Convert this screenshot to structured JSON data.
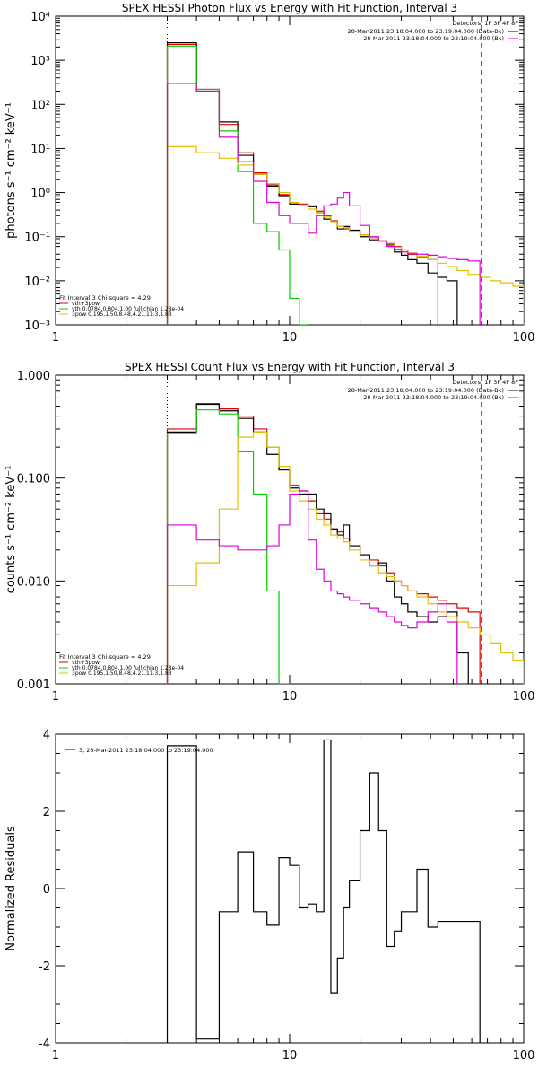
{
  "chart_data": [
    {
      "type": "line",
      "step": true,
      "title": "SPEX HESSI Photon Flux vs Energy with Fit Function, Interval 3",
      "xlabel": "",
      "ylabel": "photons s⁻¹ cm⁻² keV⁻¹",
      "x_scale": "log",
      "y_scale": "log",
      "xlim": [
        1,
        100
      ],
      "ylim": [
        0.001,
        10000
      ],
      "x_ticks": [
        1,
        10,
        100
      ],
      "x_tick_labels": [
        "1",
        "10",
        "100"
      ],
      "y_ticks": [
        0.001,
        0.01,
        0.1,
        1,
        10,
        100,
        1000,
        10000
      ],
      "y_tick_labels": [
        "10⁻³",
        "10⁻²",
        "10⁻¹",
        "10⁰",
        "10¹",
        "10²",
        "10³",
        "10⁴"
      ],
      "x_edges": [
        3,
        4,
        5,
        6,
        7,
        8,
        9,
        10,
        11,
        12,
        13,
        14,
        15,
        16,
        17,
        18,
        20,
        22,
        24,
        26,
        28,
        30,
        32,
        35,
        39,
        43,
        47,
        52,
        58,
        65,
        72,
        80,
        90,
        100
      ],
      "vlines": [
        {
          "x": 3,
          "style": "dotted",
          "color": "#000000"
        },
        {
          "x": 66,
          "style": "dashed",
          "color": "#000000"
        }
      ],
      "top_legend": {
        "detectors": "Detectors: 1F 3F 4F 8F",
        "entries": [
          {
            "label": "28-Mar-2011 23:18:04.000 to 23:19:04.000 (Data-Bk)",
            "color": "#000000"
          },
          {
            "label": "28-Mar-2011 23:18:04.000 to 23:19:04.000 (Bk)",
            "color": "#e000e0"
          }
        ]
      },
      "fit_legend": {
        "header": "Fit Interval 3   Chi-square = 4.29",
        "entries": [
          {
            "label": "vth+3pow",
            "color": "#e00000"
          },
          {
            "label": "vth 0.0784,0.804,1.00  full chian 1.28e-04",
            "color": "#00d000"
          },
          {
            "label": "3pow 0.195,1.50,8.48,4.21,11.3,1.83",
            "color": "#e0c000"
          }
        ]
      },
      "series": [
        {
          "color": "#e00000",
          "values": [
            2300,
            220,
            35,
            8,
            2.8,
            1.5,
            0.9,
            0.55,
            0.55,
            0.5,
            0.38,
            0.3,
            0.23,
            0.17,
            0.15,
            0.13,
            0.11,
            0.095,
            0.08,
            0.07,
            0.06,
            0.05,
            0.04,
            0.035,
            0.03
          ]
        },
        {
          "color": "#000000",
          "values": [
            2500,
            200,
            40,
            7,
            2.6,
            1.4,
            0.85,
            0.55,
            0.5,
            0.48,
            0.35,
            0.25,
            0.22,
            0.15,
            0.17,
            0.14,
            0.1,
            0.085,
            0.08,
            0.065,
            0.045,
            0.038,
            0.03,
            0.025,
            0.015,
            0.012,
            0.01
          ]
        },
        {
          "color": "#00d000",
          "values": [
            2100,
            220,
            25,
            3,
            0.2,
            0.13,
            0.05,
            0.004,
            0.001
          ]
        },
        {
          "color": "#e0c000",
          "values": [
            11,
            8,
            6,
            4.2,
            2.6,
            1.6,
            1.0,
            0.6,
            0.5,
            0.42,
            0.35,
            0.28,
            0.22,
            0.17,
            0.16,
            0.13,
            0.11,
            0.095,
            0.08,
            0.068,
            0.058,
            0.05,
            0.042,
            0.036,
            0.03,
            0.025,
            0.021,
            0.017,
            0.014,
            0.012,
            0.01,
            0.009,
            0.0075
          ]
        },
        {
          "color": "#e000e0",
          "values": [
            300,
            200,
            18,
            5,
            1.8,
            0.6,
            0.3,
            0.2,
            0.2,
            0.12,
            0.3,
            0.5,
            0.55,
            0.75,
            1.0,
            0.5,
            0.18,
            0.1,
            0.08,
            0.06,
            0.052,
            0.045,
            0.042,
            0.04,
            0.038,
            0.035,
            0.032,
            0.03,
            0.028
          ]
        }
      ]
    },
    {
      "type": "line",
      "step": true,
      "title": "SPEX HESSI Count Flux vs Energy with Fit Function, Interval 3",
      "xlabel": "",
      "ylabel": "counts s⁻¹ cm⁻² keV⁻¹",
      "x_scale": "log",
      "y_scale": "log",
      "xlim": [
        1,
        100
      ],
      "ylim": [
        0.001,
        1
      ],
      "x_ticks": [
        1,
        10,
        100
      ],
      "x_tick_labels": [
        "1",
        "10",
        "100"
      ],
      "y_ticks": [
        0.001,
        0.01,
        0.1,
        1
      ],
      "y_tick_labels": [
        "0.001",
        "0.010",
        "0.100",
        "1.000"
      ],
      "x_edges": [
        3,
        4,
        5,
        6,
        7,
        8,
        9,
        10,
        11,
        12,
        13,
        14,
        15,
        16,
        17,
        18,
        20,
        22,
        24,
        26,
        28,
        30,
        32,
        35,
        39,
        43,
        47,
        52,
        58,
        65,
        72,
        80,
        90,
        100
      ],
      "vlines": [
        {
          "x": 3,
          "style": "dotted",
          "color": "#000000"
        },
        {
          "x": 66,
          "style": "dashed",
          "color": "#000000"
        }
      ],
      "top_legend": {
        "detectors": "Detectors: 1F 3F 4F 8F",
        "entries": [
          {
            "label": "28-Mar-2011 23:18:04.000 to 23:19:04.000 (Data-Bk)",
            "color": "#000000"
          },
          {
            "label": "28-Mar-2011 23:18:04.000 to 23:19:04.000 (Bk)",
            "color": "#e000e0"
          }
        ]
      },
      "fit_legend": {
        "header": "Fit Interval 3   Chi-square = 4.29",
        "entries": [
          {
            "label": "vth+3pow",
            "color": "#e00000"
          },
          {
            "label": "vth 0.0784,0.804,1.00  full chian 1.28e-04",
            "color": "#00d000"
          },
          {
            "label": "3pow 0.195,1.50,8.48,4.21,11.3,1.83",
            "color": "#e0c000"
          }
        ]
      },
      "series": [
        {
          "color": "#e00000",
          "values": [
            0.3,
            0.53,
            0.47,
            0.4,
            0.3,
            0.2,
            0.12,
            0.085,
            0.075,
            0.06,
            0.045,
            0.04,
            0.032,
            0.03,
            0.026,
            0.022,
            0.018,
            0.016,
            0.014,
            0.012,
            0.01,
            0.009,
            0.008,
            0.0075,
            0.007,
            0.0065,
            0.006,
            0.0055,
            0.005
          ]
        },
        {
          "color": "#000000",
          "values": [
            0.28,
            0.52,
            0.45,
            0.38,
            0.28,
            0.17,
            0.12,
            0.08,
            0.07,
            0.07,
            0.05,
            0.045,
            0.032,
            0.028,
            0.035,
            0.022,
            0.018,
            0.014,
            0.015,
            0.01,
            0.007,
            0.006,
            0.005,
            0.0045,
            0.004,
            0.0045,
            0.005,
            0.002
          ]
        },
        {
          "color": "#00d000",
          "values": [
            0.27,
            0.46,
            0.42,
            0.18,
            0.07,
            0.008,
            0.001
          ]
        },
        {
          "color": "#e0c000",
          "values": [
            0.009,
            0.015,
            0.05,
            0.25,
            0.28,
            0.2,
            0.13,
            0.075,
            0.06,
            0.05,
            0.04,
            0.035,
            0.028,
            0.026,
            0.024,
            0.02,
            0.016,
            0.014,
            0.012,
            0.011,
            0.01,
            0.009,
            0.008,
            0.007,
            0.006,
            0.005,
            0.0045,
            0.004,
            0.0035,
            0.003,
            0.0025,
            0.002,
            0.0017
          ]
        },
        {
          "color": "#e000e0",
          "values": [
            0.035,
            0.025,
            0.022,
            0.02,
            0.02,
            0.022,
            0.035,
            0.07,
            0.075,
            0.025,
            0.013,
            0.01,
            0.008,
            0.0075,
            0.007,
            0.0065,
            0.006,
            0.0055,
            0.005,
            0.0045,
            0.004,
            0.0037,
            0.0035,
            0.004,
            0.005,
            0.006,
            0.004
          ]
        }
      ]
    },
    {
      "type": "line",
      "step": true,
      "title": "",
      "xlabel": "",
      "ylabel": "Normalized Residuals",
      "x_scale": "log",
      "y_scale": "linear",
      "xlim": [
        1,
        100
      ],
      "ylim": [
        -4,
        4
      ],
      "x_ticks": [
        1,
        10,
        100
      ],
      "x_tick_labels": [
        "1",
        "10",
        "100"
      ],
      "y_ticks": [
        -4,
        -2,
        0,
        2,
        4
      ],
      "y_tick_labels": [
        "-4",
        "-2",
        "0",
        "2",
        "4"
      ],
      "x_edges": [
        3,
        4,
        5,
        6,
        7,
        8,
        9,
        10,
        11,
        12,
        13,
        14,
        15,
        16,
        17,
        18,
        20,
        22,
        24,
        26,
        28,
        30,
        32,
        35,
        39,
        43,
        47,
        52,
        58,
        65
      ],
      "vlines": [],
      "drop_to": -4,
      "top_legend": {
        "detectors": "",
        "entries": [
          {
            "label": "3, 28-Mar-2011 23:18:04.000 to 23:19:04.000",
            "color": "#000000"
          }
        ]
      },
      "fit_legend": null,
      "series": [
        {
          "color": "#000000",
          "values": [
            3.7,
            -3.9,
            -0.6,
            0.95,
            -0.6,
            -0.95,
            0.8,
            0.6,
            -0.5,
            -0.4,
            -0.6,
            3.85,
            -2.7,
            -1.8,
            -0.5,
            0.2,
            1.5,
            3.0,
            1.5,
            -1.5,
            -1.1,
            -0.6,
            -0.6,
            0.5,
            -1.0,
            -0.85,
            -0.85,
            -0.85,
            -0.85
          ]
        }
      ]
    }
  ]
}
